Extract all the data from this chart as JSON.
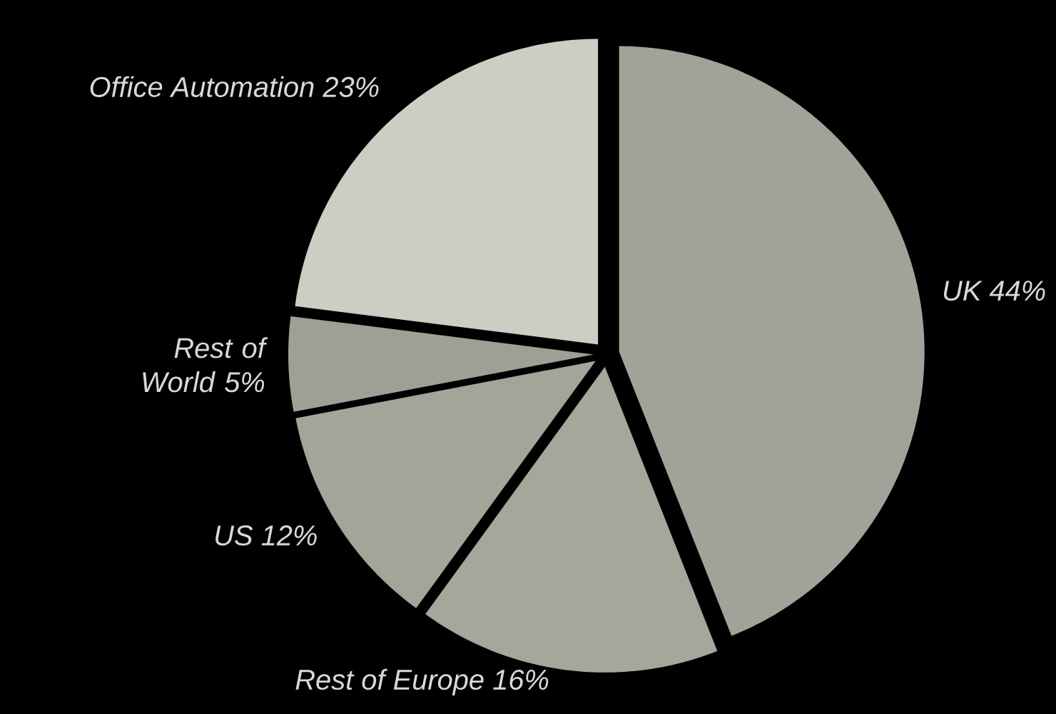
{
  "chart_data": {
    "type": "pie",
    "categories": [
      "UK",
      "Rest of Europe",
      "US",
      "Rest of World",
      "Office Automation"
    ],
    "values": [
      44,
      16,
      12,
      5,
      23
    ],
    "value_labels": [
      "44%",
      "16%",
      "12%",
      "5%",
      "23%"
    ],
    "colors": [
      "#a2a298",
      "#a6a69b",
      "#a4a499",
      "#a09f95",
      "#cdcdc4"
    ]
  }
}
